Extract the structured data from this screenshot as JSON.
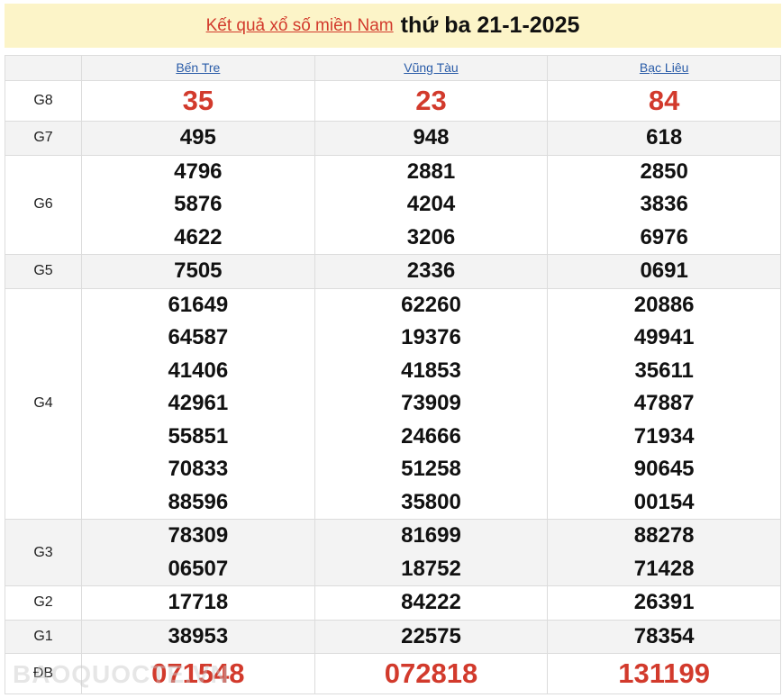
{
  "header": {
    "link": "Kết quả xổ số miền Nam",
    "date": "thứ ba 21-1-2025"
  },
  "provinces": [
    "Bến Tre",
    "Vũng Tàu",
    "Bạc Liêu"
  ],
  "prizes": [
    {
      "label": "G8",
      "results": [
        [
          "35"
        ],
        [
          "23"
        ],
        [
          "84"
        ]
      ],
      "highlight": true
    },
    {
      "label": "G7",
      "results": [
        [
          "495"
        ],
        [
          "948"
        ],
        [
          "618"
        ]
      ]
    },
    {
      "label": "G6",
      "results": [
        [
          "4796",
          "5876",
          "4622"
        ],
        [
          "2881",
          "4204",
          "3206"
        ],
        [
          "2850",
          "3836",
          "6976"
        ]
      ]
    },
    {
      "label": "G5",
      "results": [
        [
          "7505"
        ],
        [
          "2336"
        ],
        [
          "0691"
        ]
      ]
    },
    {
      "label": "G4",
      "results": [
        [
          "61649",
          "64587",
          "41406",
          "42961",
          "55851",
          "70833",
          "88596"
        ],
        [
          "62260",
          "19376",
          "41853",
          "73909",
          "24666",
          "51258",
          "35800"
        ],
        [
          "20886",
          "49941",
          "35611",
          "47887",
          "71934",
          "90645",
          "00154"
        ]
      ]
    },
    {
      "label": "G3",
      "results": [
        [
          "78309",
          "06507"
        ],
        [
          "81699",
          "18752"
        ],
        [
          "88278",
          "71428"
        ]
      ]
    },
    {
      "label": "G2",
      "results": [
        [
          "17718"
        ],
        [
          "84222"
        ],
        [
          "26391"
        ]
      ]
    },
    {
      "label": "G1",
      "results": [
        [
          "38953"
        ],
        [
          "22575"
        ],
        [
          "78354"
        ]
      ]
    },
    {
      "label": "ĐB",
      "results": [
        [
          "071548"
        ],
        [
          "072818"
        ],
        [
          "131199"
        ]
      ],
      "highlight": true
    }
  ],
  "watermark": "BAOQUOCTE.VN",
  "colors": {
    "accent_red": "#d23a2c",
    "link_blue": "#2a5ca8",
    "banner_bg": "#fcf4c8"
  }
}
